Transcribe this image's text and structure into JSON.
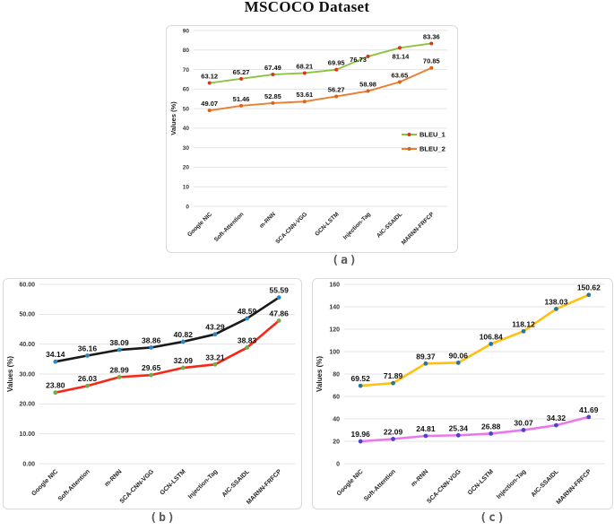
{
  "page": {
    "title": "MSCOCO Dataset"
  },
  "captions": {
    "a": "(a)",
    "b": "(b)",
    "c": "(c)"
  },
  "chart_data": [
    {
      "id": "a",
      "type": "line",
      "ylabel": "Values (%)",
      "ylim": [
        0,
        90
      ],
      "ystep": 10,
      "ytick_decimals": 0,
      "grid": true,
      "legend": {
        "visible": true,
        "position": "middle-right"
      },
      "categories": [
        "Google NIC",
        "Soft-Attention",
        "m-RNN",
        "SCA-CNN-VGG",
        "GCN-LSTM",
        "Injection-Tag",
        "AIC-SSAIDL",
        "MARNN-FRFCP"
      ],
      "series": [
        {
          "name": "BLEU_1",
          "line_color": "#8BC440",
          "marker_color": "#E0301E",
          "values": [
            63.12,
            65.27,
            67.49,
            68.21,
            69.95,
            76.73,
            81.14,
            83.36
          ],
          "label_offsets": {
            "5": [
              -11,
              11
            ],
            "6": [
              1,
              17
            ]
          }
        },
        {
          "name": "BLEU_2",
          "line_color": "#ED7D31",
          "marker_color": "#D9651D",
          "values": [
            49.07,
            51.46,
            52.85,
            53.61,
            56.27,
            58.98,
            63.65,
            70.85
          ]
        }
      ]
    },
    {
      "id": "b",
      "type": "line",
      "ylabel": "Values (%)",
      "ylim": [
        0,
        60
      ],
      "ystep": 10,
      "ytick_decimals": 2,
      "grid": true,
      "legend": {
        "visible": false
      },
      "categories": [
        "Google NIC",
        "Soft-Attention",
        "m-RNN",
        "SCA-CNN-VGG",
        "GCN-LSTM",
        "Injection-Tag",
        "AIC-SSAIDL",
        "MARNN-FRFCP"
      ],
      "series": [
        {
          "line_color": "#1A1A1A",
          "marker_color": "#2E86C1",
          "values": [
            34.14,
            36.16,
            38.09,
            38.86,
            40.82,
            43.29,
            48.59,
            55.59
          ]
        },
        {
          "line_color": "#F72717",
          "marker_color": "#70AD47",
          "values": [
            23.8,
            26.03,
            28.99,
            29.65,
            32.09,
            33.21,
            38.83,
            47.86
          ]
        }
      ]
    },
    {
      "id": "c",
      "type": "line",
      "ylabel": "Values (%)",
      "ylim": [
        0,
        160
      ],
      "ystep": 20,
      "ytick_decimals": 0,
      "grid": true,
      "legend": {
        "visible": false
      },
      "categories": [
        "Google NIC",
        "Soft-Attention",
        "m-RNN",
        "SCA-CNN-VGG",
        "GCN-LSTM",
        "Injection-Tag",
        "AIC-SSAIDL",
        "MARNN-FRFCP"
      ],
      "series": [
        {
          "line_color": "#FFC010",
          "marker_color": "#26769B",
          "values": [
            69.52,
            71.89,
            89.37,
            90.06,
            106.84,
            118.12,
            138.03,
            150.62
          ]
        },
        {
          "line_color": "#EC77ED",
          "marker_color": "#4643CE",
          "values": [
            19.96,
            22.09,
            24.81,
            25.34,
            26.88,
            30.07,
            34.32,
            41.69
          ]
        }
      ]
    }
  ]
}
